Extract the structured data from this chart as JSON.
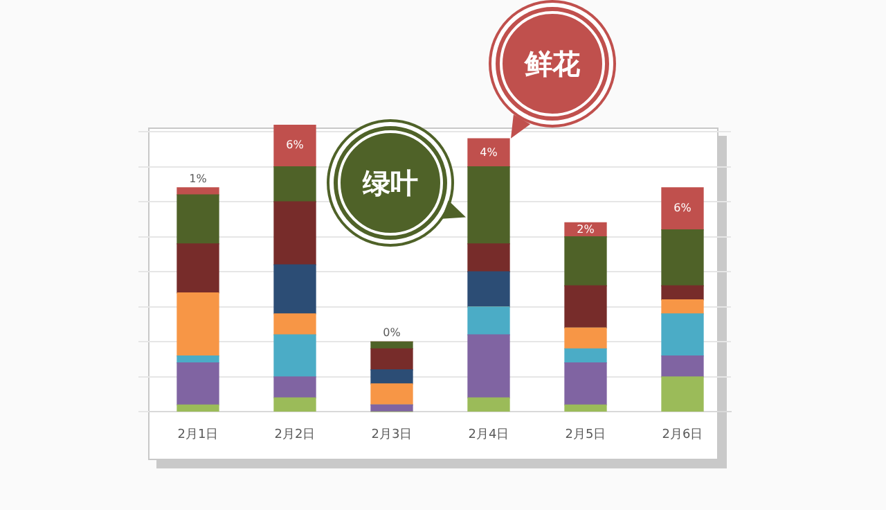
{
  "chart_data": {
    "type": "bar",
    "stacked": true,
    "grid": "y",
    "legend": false,
    "tick_labels": "x",
    "ylim": [
      0,
      41
    ],
    "yticks": [
      {
        "value": 0,
        "label": null
      },
      {
        "value": 5,
        "label": null
      },
      {
        "value": 10,
        "label": null
      },
      {
        "value": 15,
        "label": null
      },
      {
        "value": 20,
        "label": null
      },
      {
        "value": 25,
        "label": null
      },
      {
        "value": 30,
        "label": null
      },
      {
        "value": 35,
        "label": null
      },
      {
        "value": 40,
        "label": null
      }
    ],
    "categories": [
      "2月1日",
      "2月2日",
      "2月3日",
      "2月4日",
      "2月5日",
      "2月6日"
    ],
    "series": [
      {
        "color": "#9bbb59",
        "values": [
          1,
          2,
          0,
          2,
          1,
          5
        ]
      },
      {
        "color": "#8064a2",
        "values": [
          6,
          3,
          1,
          9,
          6,
          3
        ]
      },
      {
        "color": "#4bacc6",
        "values": [
          1,
          6,
          0,
          4,
          2,
          6
        ]
      },
      {
        "color": "#f79646",
        "values": [
          9,
          3,
          3,
          0,
          3,
          2
        ]
      },
      {
        "color": "#2c4d75",
        "values": [
          0,
          7,
          2,
          5,
          0,
          0
        ]
      },
      {
        "color": "#772c2a",
        "values": [
          7,
          9,
          3,
          4,
          6,
          2
        ]
      },
      {
        "name": "绿叶",
        "color": "#4f6228",
        "values": [
          7,
          5,
          1,
          11,
          7,
          8
        ]
      },
      {
        "name": "鲜花",
        "color": "#c0504d",
        "values": [
          1,
          6,
          0,
          4,
          2,
          6
        ],
        "value_labels": [
          "1%",
          "6%",
          "0%",
          "4%",
          "2%",
          "6%"
        ]
      }
    ]
  }
}
